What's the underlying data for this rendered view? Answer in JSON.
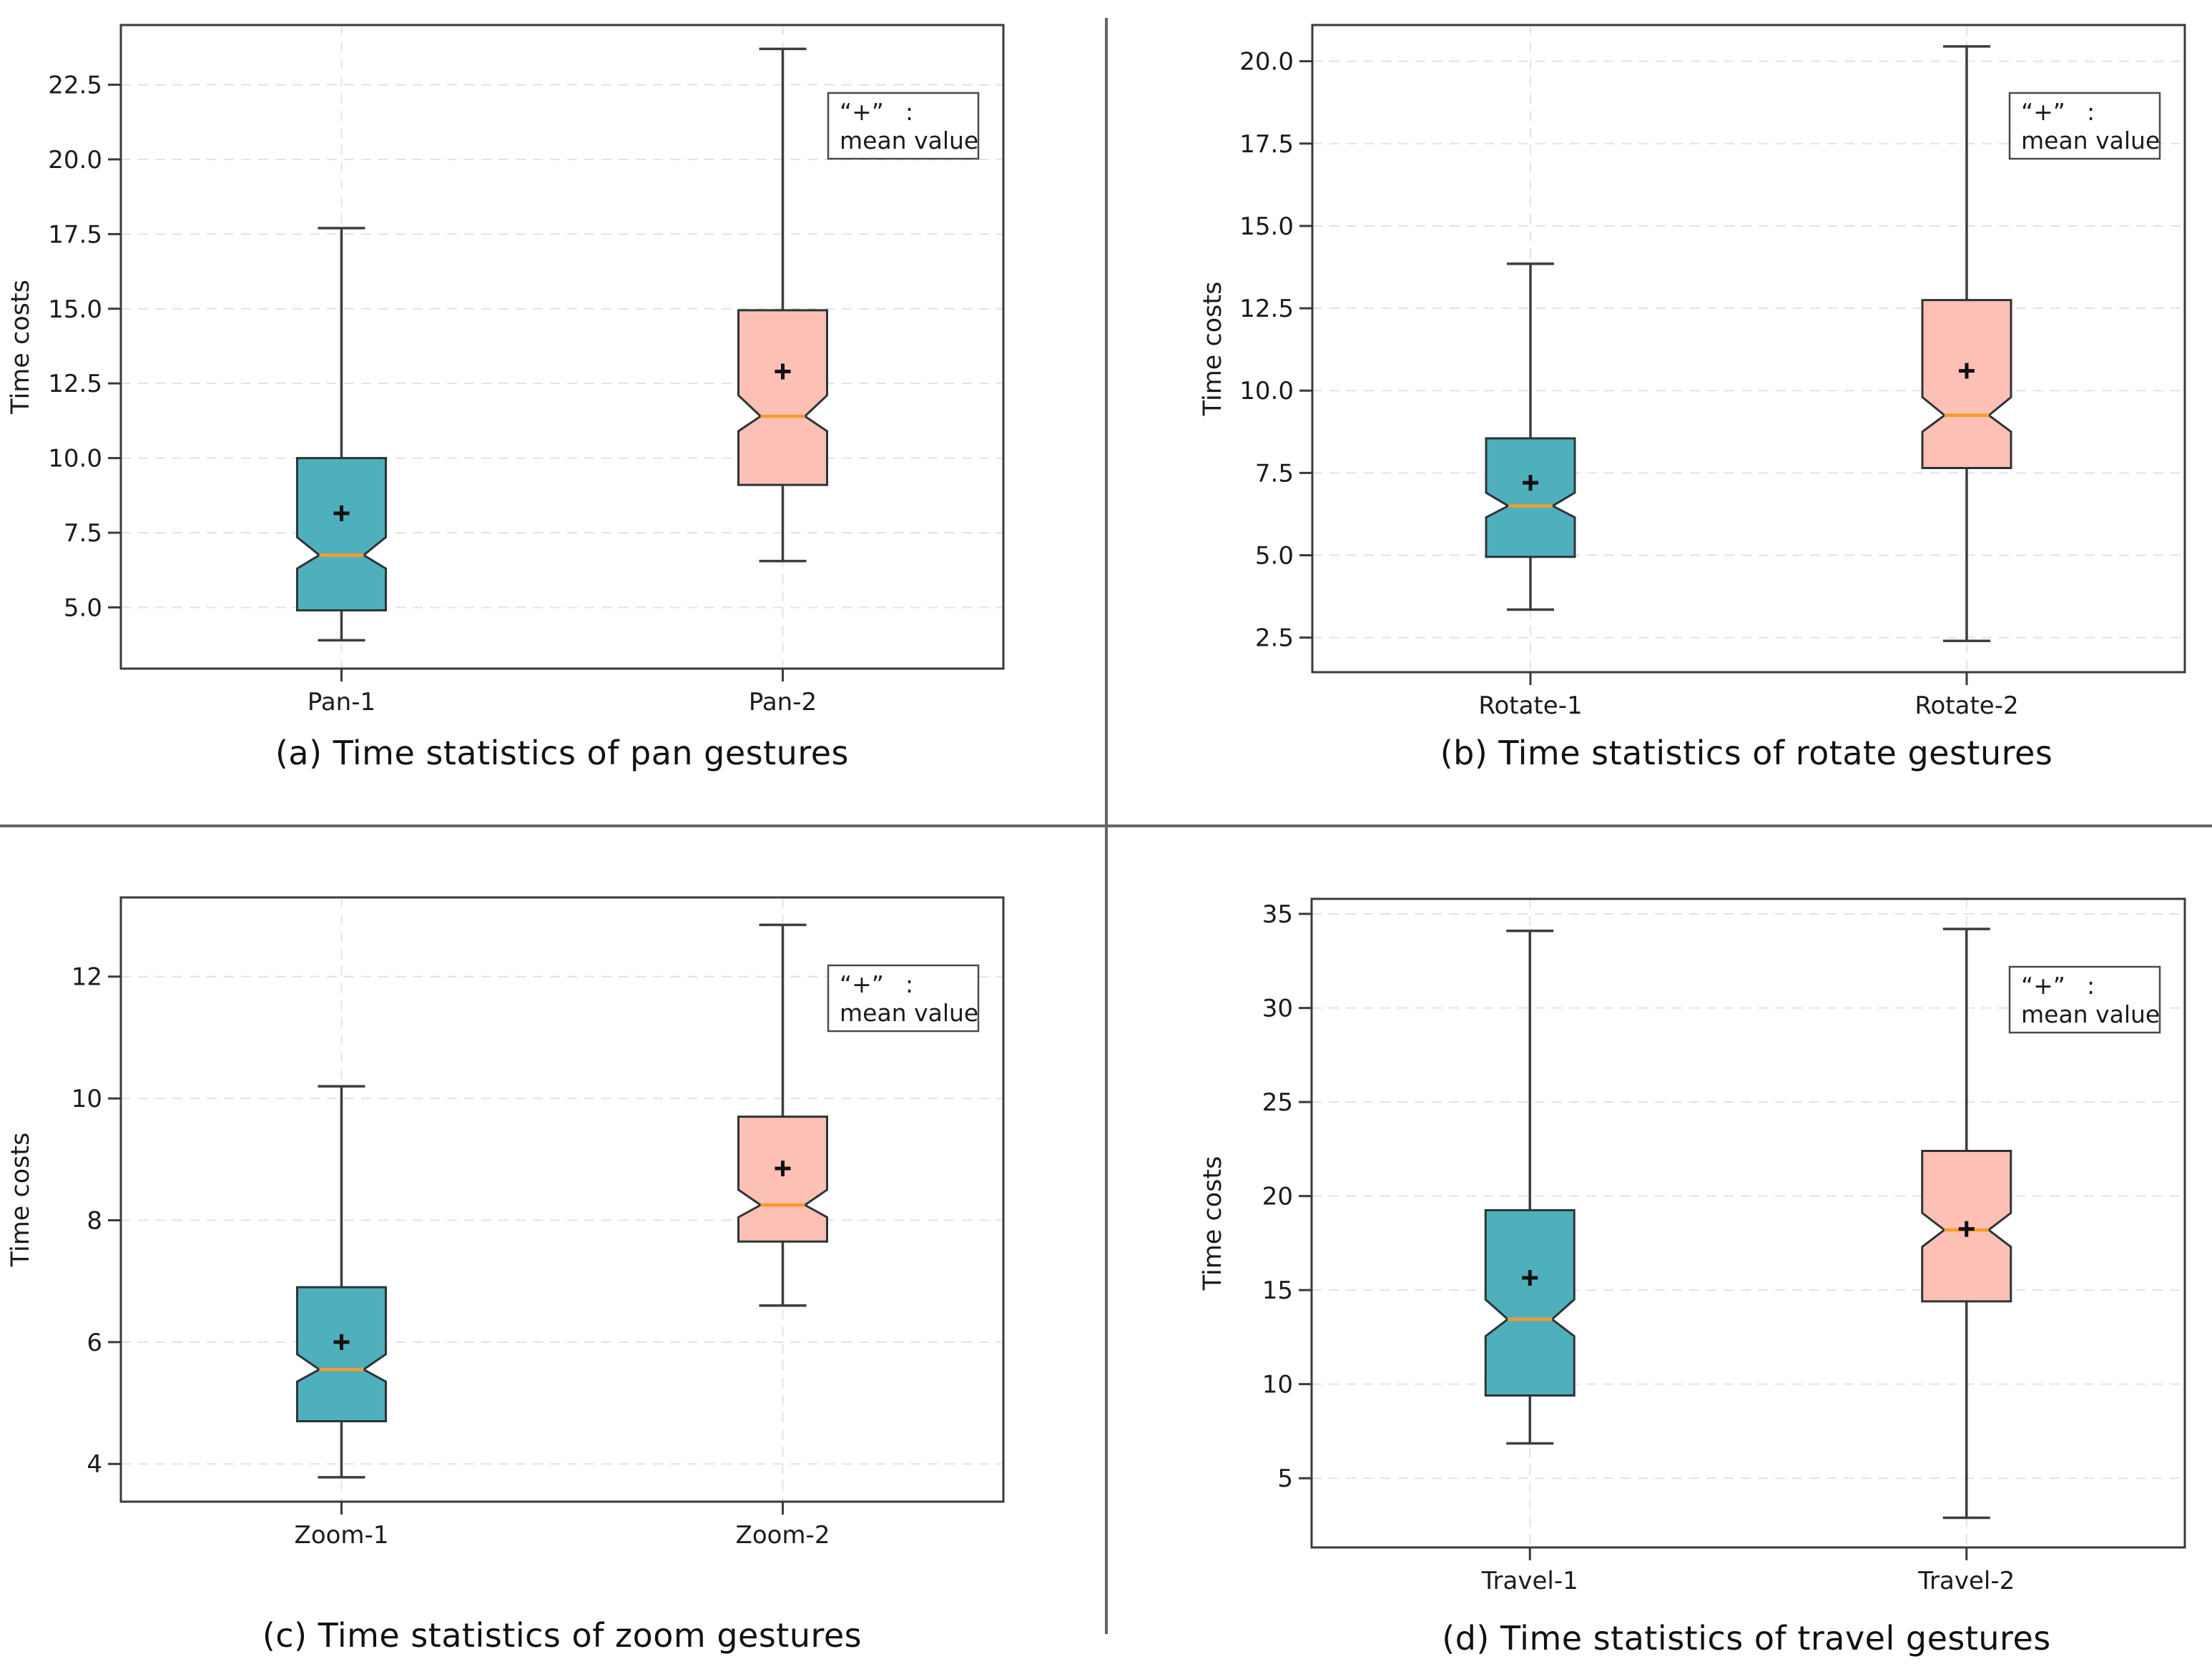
{
  "colors": {
    "teal_fill": "#4FB0BD",
    "pink_fill": "#FCC0B5",
    "box_edge": "#2D3436",
    "whisker": "#3A3E42",
    "median": "#F89A28",
    "mean_marker": "#101010",
    "grid": "#E3E3E3",
    "spine": "#3A3A3A",
    "tick_text": "#1B1B1B",
    "divider": "#646464",
    "legend_border": "#4A4A4A"
  },
  "legend": {
    "symbol": "“+”",
    "colon": ":",
    "label": "mean value"
  },
  "chart_data": [
    {
      "panel": "a",
      "type": "boxplot",
      "caption": "(a) Time statistics of pan gestures",
      "ylabel": "Time costs",
      "categories": [
        "Pan-1",
        "Pan-2"
      ],
      "ylim": [
        2.95,
        24.5
      ],
      "yticks": [
        5.0,
        7.5,
        10.0,
        12.5,
        15.0,
        17.5,
        20.0,
        22.5
      ],
      "ytick_labels": [
        "5.0",
        "7.5",
        "10.0",
        "12.5",
        "15.0",
        "17.5",
        "20.0",
        "22.5"
      ],
      "grid": true,
      "legend_position": "top-right",
      "boxes": [
        {
          "label": "Pan-1",
          "fill": "teal_fill",
          "whisker_low": 3.9,
          "q1": 4.9,
          "notch_low": 6.3,
          "median": 6.75,
          "notch_high": 7.35,
          "q3": 10.0,
          "whisker_high": 17.7,
          "mean": 8.15
        },
        {
          "label": "Pan-2",
          "fill": "pink_fill",
          "whisker_low": 6.55,
          "q1": 9.1,
          "notch_low": 10.9,
          "median": 11.4,
          "notch_high": 12.1,
          "q3": 14.95,
          "whisker_high": 23.7,
          "mean": 12.9
        }
      ]
    },
    {
      "panel": "b",
      "type": "boxplot",
      "caption": "(b) Time statistics of rotate gestures",
      "ylabel": "Time costs",
      "categories": [
        "Rotate-1",
        "Rotate-2"
      ],
      "ylim": [
        1.45,
        21.1
      ],
      "yticks": [
        2.5,
        5.0,
        7.5,
        10.0,
        12.5,
        15.0,
        17.5,
        20.0
      ],
      "ytick_labels": [
        "2.5",
        "5.0",
        "7.5",
        "10.0",
        "12.5",
        "15.0",
        "17.5",
        "20.0"
      ],
      "grid": true,
      "legend_position": "top-right",
      "boxes": [
        {
          "label": "Rotate-1",
          "fill": "teal_fill",
          "whisker_low": 3.35,
          "q1": 4.95,
          "notch_low": 6.15,
          "median": 6.5,
          "notch_high": 6.9,
          "q3": 8.55,
          "whisker_high": 13.85,
          "mean": 7.2
        },
        {
          "label": "Rotate-2",
          "fill": "pink_fill",
          "whisker_low": 2.4,
          "q1": 7.65,
          "notch_low": 8.75,
          "median": 9.25,
          "notch_high": 9.8,
          "q3": 12.75,
          "whisker_high": 20.45,
          "mean": 10.6
        }
      ]
    },
    {
      "panel": "c",
      "type": "boxplot",
      "caption": "(c) Time statistics of zoom gestures",
      "ylabel": "Time costs",
      "categories": [
        "Zoom-1",
        "Zoom-2"
      ],
      "ylim": [
        3.38,
        13.3
      ],
      "yticks": [
        4,
        6,
        8,
        10,
        12
      ],
      "ytick_labels": [
        "4",
        "6",
        "8",
        "10",
        "12"
      ],
      "grid": true,
      "legend_position": "top-right",
      "boxes": [
        {
          "label": "Zoom-1",
          "fill": "teal_fill",
          "whisker_low": 3.78,
          "q1": 4.7,
          "notch_low": 5.35,
          "median": 5.55,
          "notch_high": 5.8,
          "q3": 6.9,
          "whisker_high": 10.2,
          "mean": 6.0
        },
        {
          "label": "Zoom-2",
          "fill": "pink_fill",
          "whisker_low": 6.6,
          "q1": 7.65,
          "notch_low": 8.05,
          "median": 8.25,
          "notch_high": 8.5,
          "q3": 9.7,
          "whisker_high": 12.85,
          "mean": 8.85
        }
      ]
    },
    {
      "panel": "d",
      "type": "boxplot",
      "caption": "(d) Time statistics of travel gestures",
      "ylabel": "Time costs",
      "categories": [
        "Travel-1",
        "Travel-2"
      ],
      "ylim": [
        1.32,
        35.8
      ],
      "yticks": [
        5,
        10,
        15,
        20,
        25,
        30,
        35
      ],
      "ytick_labels": [
        "5",
        "10",
        "15",
        "20",
        "25",
        "30",
        "35"
      ],
      "grid": true,
      "legend_position": "top-right",
      "boxes": [
        {
          "label": "Travel-1",
          "fill": "teal_fill",
          "whisker_low": 6.85,
          "q1": 9.4,
          "notch_low": 12.55,
          "median": 13.45,
          "notch_high": 14.5,
          "q3": 19.25,
          "whisker_high": 34.1,
          "mean": 15.65
        },
        {
          "label": "Travel-2",
          "fill": "pink_fill",
          "whisker_low": 2.9,
          "q1": 14.4,
          "notch_low": 17.3,
          "median": 18.2,
          "notch_high": 19.1,
          "q3": 22.4,
          "whisker_high": 34.2,
          "mean": 18.25
        }
      ]
    }
  ]
}
